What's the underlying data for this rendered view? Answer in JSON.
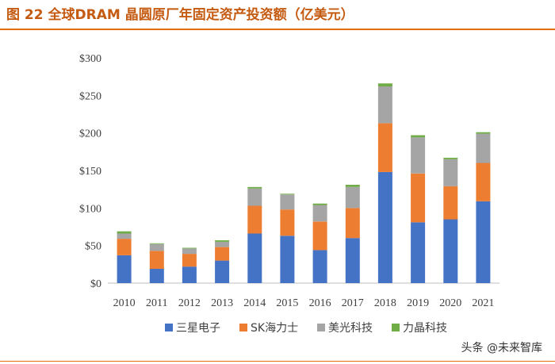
{
  "figure": {
    "title": "图 22 全球DRAM 晶圆原厂年固定资产投资额（亿美元）",
    "watermark": "头条 @未来智库"
  },
  "colors": {
    "title": "#c55a11",
    "rule": "#e46c0a"
  },
  "chart_data": {
    "type": "bar",
    "stacked": true,
    "categories": [
      "2010",
      "2011",
      "2012",
      "2013",
      "2014",
      "2015",
      "2016",
      "2017",
      "2018",
      "2019",
      "2020",
      "2021"
    ],
    "series": [
      {
        "name": "三星电子",
        "color": "#4472c4",
        "values": [
          37,
          19,
          22,
          30,
          66,
          63,
          44,
          60,
          148,
          81,
          85,
          109
        ]
      },
      {
        "name": "SK海力士",
        "color": "#ed7d31",
        "values": [
          22,
          24,
          17,
          18,
          37,
          35,
          38,
          40,
          65,
          65,
          44,
          51
        ]
      },
      {
        "name": "美光科技",
        "color": "#a5a5a5",
        "values": [
          7,
          9,
          7,
          7,
          23,
          20,
          22,
          28,
          49,
          48,
          36,
          39
        ]
      },
      {
        "name": "力晶科技",
        "color": "#70ad47",
        "values": [
          3,
          1,
          1,
          2,
          2,
          1,
          2,
          3,
          4,
          3,
          2,
          2
        ]
      }
    ],
    "y_ticks": [
      "$0",
      "$50",
      "$100",
      "$150",
      "$200",
      "$250",
      "$300"
    ],
    "ylim": [
      0,
      300
    ],
    "grid": false,
    "legend_position": "bottom"
  }
}
